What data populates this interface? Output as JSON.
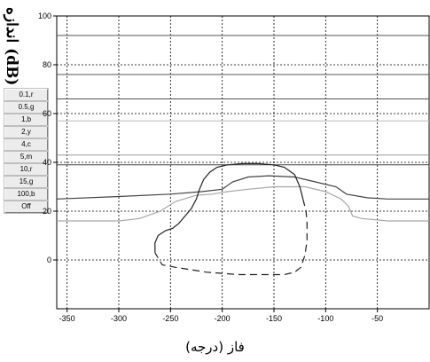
{
  "y_axis_label": "اندازه (dB)",
  "x_axis_label": "فاز (درجه)",
  "buttons": [
    "0.1,r",
    "0.5,g",
    "1,b",
    "2,y",
    "4,c",
    "5,m",
    "10,r",
    "15,g",
    "100,b",
    "Off"
  ],
  "chart_data": {
    "type": "line",
    "xlabel": "فاز (درجه)",
    "ylabel": "اندازه (dB)",
    "xlim": [
      -360,
      0
    ],
    "ylim": [
      -20,
      100
    ],
    "x_ticks": [
      "-350",
      "-300",
      "-250",
      "-200",
      "-150",
      "-100",
      "-50"
    ],
    "y_ticks": [
      "100",
      "80",
      "60",
      "40",
      "20",
      "0"
    ],
    "grid": true,
    "constant_magnitude_lines": [
      {
        "y": 92,
        "color": "#555555"
      },
      {
        "y": 76,
        "color": "#555555"
      },
      {
        "y": 66,
        "color": "#555555"
      },
      {
        "y": 57,
        "color": "#bbbbbb"
      },
      {
        "y": 43,
        "color": "#999999"
      },
      {
        "y": 39,
        "color": "#444444"
      }
    ],
    "series": [
      {
        "color": "#444444",
        "dash": false,
        "x": [
          -360,
          -300,
          -250,
          -220,
          -200,
          -190,
          -175,
          -155,
          -130,
          -110,
          -90,
          -80,
          -60,
          -40,
          -20,
          0
        ],
        "y": [
          25,
          26,
          27,
          28,
          29,
          32,
          34,
          34.5,
          34,
          32,
          30,
          27,
          25.5,
          25,
          25,
          25
        ]
      },
      {
        "color": "#a8a8a8",
        "dash": false,
        "x": [
          -360,
          -300,
          -280,
          -260,
          -245,
          -225,
          -210,
          -195,
          -175,
          -150,
          -120,
          -100,
          -85,
          -78,
          -74,
          -65,
          -40,
          0
        ],
        "y": [
          16,
          16,
          17,
          20,
          24,
          26.5,
          27,
          28,
          29,
          30,
          30,
          28,
          25,
          22,
          18,
          17,
          16,
          16
        ]
      },
      {
        "color": "#222222",
        "dash": false,
        "x": [
          -265,
          -265,
          -262,
          -255,
          -248,
          -242,
          -236,
          -230,
          -225,
          -222,
          -218,
          -212,
          -205,
          -195,
          -180,
          -165,
          -150,
          -140,
          -130,
          -125,
          -122
        ],
        "y": [
          3,
          7,
          10,
          12,
          13,
          15,
          18,
          21,
          25,
          29,
          33,
          36,
          38,
          39,
          39.5,
          39.5,
          39,
          38,
          35,
          30,
          25
        ]
      },
      {
        "color": "#222222",
        "dash": true,
        "x": [
          -122,
          -119,
          -118,
          -118,
          -120,
          -124,
          -130,
          -140,
          -155,
          -170,
          -185,
          -200,
          -215,
          -230,
          -245,
          -258,
          -265
        ],
        "y": [
          25,
          20,
          15,
          8,
          2,
          -3,
          -5,
          -6,
          -6,
          -6,
          -6,
          -5.5,
          -5,
          -4,
          -3,
          -2,
          3
        ]
      }
    ]
  }
}
